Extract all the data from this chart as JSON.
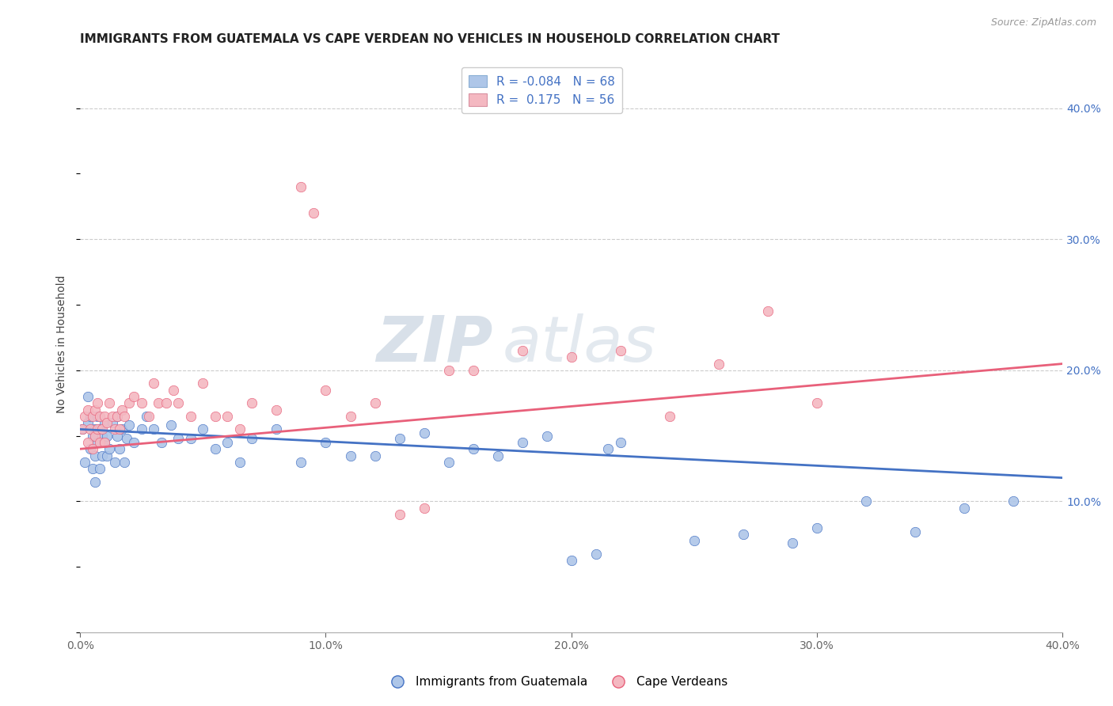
{
  "title": "IMMIGRANTS FROM GUATEMALA VS CAPE VERDEAN NO VEHICLES IN HOUSEHOLD CORRELATION CHART",
  "source": "Source: ZipAtlas.com",
  "ylabel": "No Vehicles in Household",
  "xlim": [
    0.0,
    0.4
  ],
  "ylim": [
    0.0,
    0.44
  ],
  "xticks": [
    0.0,
    0.1,
    0.2,
    0.3,
    0.4
  ],
  "yticks_right": [
    0.1,
    0.2,
    0.3,
    0.4
  ],
  "xtick_labels": [
    "0.0%",
    "10.0%",
    "20.0%",
    "30.0%",
    "40.0%"
  ],
  "ytick_labels_right": [
    "10.0%",
    "20.0%",
    "30.0%",
    "40.0%"
  ],
  "legend_entries": [
    {
      "label": "R = -0.084   N = 68",
      "color": "#aec6e8"
    },
    {
      "label": "R =  0.175   N = 56",
      "color": "#f4b8c1"
    }
  ],
  "series_blue": {
    "color": "#aec6e8",
    "line_color": "#4472c4",
    "x": [
      0.001,
      0.002,
      0.003,
      0.003,
      0.004,
      0.004,
      0.005,
      0.005,
      0.006,
      0.006,
      0.006,
      0.007,
      0.007,
      0.008,
      0.008,
      0.009,
      0.009,
      0.01,
      0.01,
      0.011,
      0.011,
      0.012,
      0.013,
      0.014,
      0.015,
      0.015,
      0.016,
      0.017,
      0.018,
      0.019,
      0.02,
      0.022,
      0.025,
      0.027,
      0.03,
      0.033,
      0.037,
      0.04,
      0.045,
      0.05,
      0.055,
      0.06,
      0.065,
      0.07,
      0.08,
      0.09,
      0.1,
      0.11,
      0.12,
      0.13,
      0.14,
      0.15,
      0.16,
      0.17,
      0.18,
      0.19,
      0.2,
      0.21,
      0.215,
      0.22,
      0.25,
      0.27,
      0.29,
      0.3,
      0.32,
      0.34,
      0.36,
      0.38
    ],
    "y": [
      0.155,
      0.13,
      0.16,
      0.18,
      0.14,
      0.165,
      0.125,
      0.15,
      0.115,
      0.135,
      0.155,
      0.145,
      0.165,
      0.125,
      0.155,
      0.135,
      0.15,
      0.145,
      0.16,
      0.135,
      0.15,
      0.14,
      0.16,
      0.13,
      0.15,
      0.165,
      0.14,
      0.155,
      0.13,
      0.148,
      0.158,
      0.145,
      0.155,
      0.165,
      0.155,
      0.145,
      0.158,
      0.148,
      0.148,
      0.155,
      0.14,
      0.145,
      0.13,
      0.148,
      0.155,
      0.13,
      0.145,
      0.135,
      0.135,
      0.148,
      0.152,
      0.13,
      0.14,
      0.135,
      0.145,
      0.15,
      0.055,
      0.06,
      0.14,
      0.145,
      0.07,
      0.075,
      0.068,
      0.08,
      0.1,
      0.077,
      0.095,
      0.1
    ]
  },
  "series_pink": {
    "color": "#f4b8c1",
    "line_color": "#e8607a",
    "x": [
      0.001,
      0.002,
      0.003,
      0.003,
      0.004,
      0.005,
      0.005,
      0.006,
      0.006,
      0.007,
      0.007,
      0.008,
      0.008,
      0.009,
      0.01,
      0.01,
      0.011,
      0.012,
      0.013,
      0.014,
      0.015,
      0.016,
      0.017,
      0.018,
      0.02,
      0.022,
      0.025,
      0.028,
      0.03,
      0.032,
      0.035,
      0.038,
      0.04,
      0.045,
      0.05,
      0.055,
      0.06,
      0.065,
      0.07,
      0.08,
      0.09,
      0.095,
      0.1,
      0.11,
      0.12,
      0.13,
      0.14,
      0.15,
      0.16,
      0.18,
      0.2,
      0.22,
      0.24,
      0.26,
      0.28,
      0.3
    ],
    "y": [
      0.155,
      0.165,
      0.145,
      0.17,
      0.155,
      0.165,
      0.14,
      0.15,
      0.17,
      0.155,
      0.175,
      0.145,
      0.165,
      0.155,
      0.165,
      0.145,
      0.16,
      0.175,
      0.165,
      0.155,
      0.165,
      0.155,
      0.17,
      0.165,
      0.175,
      0.18,
      0.175,
      0.165,
      0.19,
      0.175,
      0.175,
      0.185,
      0.175,
      0.165,
      0.19,
      0.165,
      0.165,
      0.155,
      0.175,
      0.17,
      0.34,
      0.32,
      0.185,
      0.165,
      0.175,
      0.09,
      0.095,
      0.2,
      0.2,
      0.215,
      0.21,
      0.215,
      0.165,
      0.205,
      0.245,
      0.175
    ]
  },
  "blue_line": {
    "x0": 0.0,
    "y0": 0.155,
    "x1": 0.4,
    "y1": 0.118
  },
  "pink_line": {
    "x0": 0.0,
    "y0": 0.14,
    "x1": 0.4,
    "y1": 0.205
  },
  "background_color": "#ffffff",
  "grid_color": "#cccccc",
  "watermark_color": "#d5dce8",
  "title_fontsize": 11,
  "axis_label_fontsize": 10,
  "tick_fontsize": 10,
  "legend_fontsize": 11
}
